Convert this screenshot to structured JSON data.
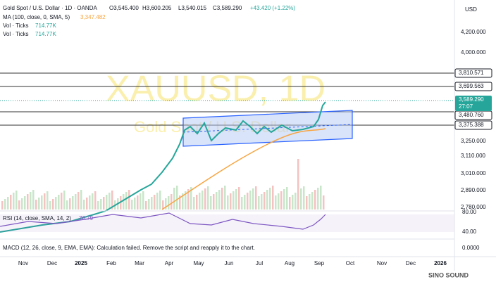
{
  "header": {
    "symbol": "Gold Spot / U.S. Dollar · 1D · OANDA",
    "open": "O3,545.400",
    "high": "H3,600.205",
    "low": "L3,540.015",
    "close": "C3,589.290",
    "change": "+43.420 (+1.22%)"
  },
  "indicators": {
    "ma": {
      "label": "MA (100, close, 0, SMA, 5)",
      "value": "3,347.482"
    },
    "volume": [
      {
        "label": "Vol · Ticks",
        "value": "714.77K"
      },
      {
        "label": "Vol · Ticks",
        "value": "714.77K"
      }
    ],
    "rsi": {
      "label": "RSI (14, close, SMA, 14, 2)",
      "value": "76.79"
    },
    "macd": {
      "label": "MACD (12, 26, close, 9, EMA, EMA): Calculation failed. Remove the script and reapply it to the chart."
    }
  },
  "watermark": {
    "title": "XAUUSD, 1D",
    "subtitle": "Gold Spot / U.S. Dollar"
  },
  "price_axis": {
    "currency": "USD",
    "labels": [
      "4,200.000",
      "4,000.000",
      "3,250.000",
      "3,110.000",
      "3,010.000",
      "2,890.000",
      "2,780.000"
    ],
    "levels": [
      "3,810.571",
      "3,699.563",
      "3,480.760",
      "3,375.388"
    ],
    "last_price": "3,589.290",
    "countdown": "27:07"
  },
  "rsi_axis": [
    "80.00",
    "40.00"
  ],
  "macd_axis": [
    "0.0000"
  ],
  "time_axis": [
    "Nov",
    "Dec",
    "2025",
    "Feb",
    "Mar",
    "Apr",
    "May",
    "Jun",
    "Jul",
    "Aug",
    "Sep",
    "Oct",
    "Nov",
    "Dec",
    "2026"
  ],
  "logo": "SINO SOUND"
}
